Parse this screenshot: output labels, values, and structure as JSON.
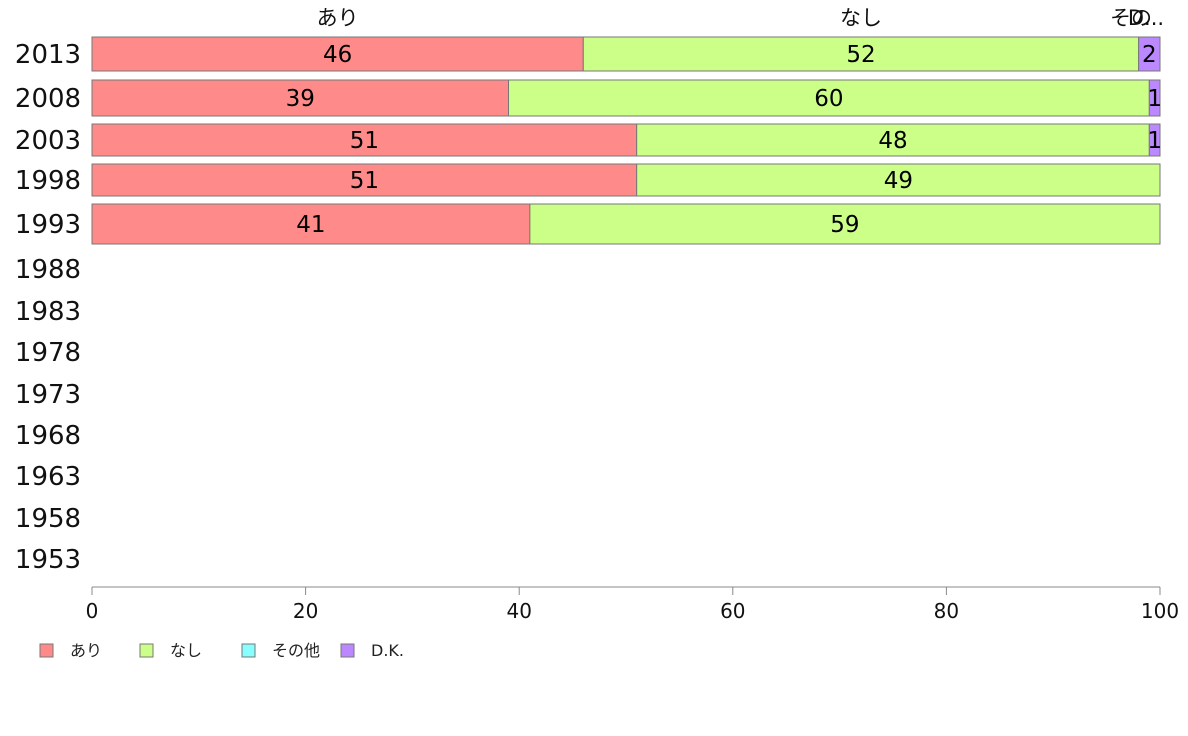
{
  "chart_data": {
    "type": "bar",
    "orientation": "horizontal",
    "stacked": true,
    "title": "",
    "xlabel": "",
    "ylabel": "",
    "xlim": [
      0,
      100
    ],
    "x_ticks": [
      0,
      20,
      40,
      60,
      80,
      100
    ],
    "grid": false,
    "legend_position": "bottom-left",
    "categories": [
      "2013",
      "2008",
      "2003",
      "1998",
      "1993",
      "1988",
      "1983",
      "1978",
      "1973",
      "1968",
      "1963",
      "1958",
      "1953"
    ],
    "top_labels": [
      "あり",
      "なし",
      "その他",
      "D.K."
    ],
    "top_labels_display": [
      "あり",
      "なし",
      "その",
      "D..."
    ],
    "series": [
      {
        "name": "あり",
        "color": "#ff8a8a",
        "values": [
          46,
          39,
          51,
          51,
          41,
          null,
          null,
          null,
          null,
          null,
          null,
          null,
          null
        ]
      },
      {
        "name": "なし",
        "color": "#ccff88",
        "values": [
          52,
          60,
          48,
          49,
          59,
          null,
          null,
          null,
          null,
          null,
          null,
          null,
          null
        ]
      },
      {
        "name": "その他",
        "color": "#88ffff",
        "values": [
          0,
          0,
          0,
          0,
          0,
          null,
          null,
          null,
          null,
          null,
          null,
          null,
          null
        ]
      },
      {
        "name": "D.K.",
        "color": "#bb88ff",
        "values": [
          2,
          1,
          1,
          0,
          0,
          null,
          null,
          null,
          null,
          null,
          null,
          null,
          null
        ]
      }
    ]
  }
}
